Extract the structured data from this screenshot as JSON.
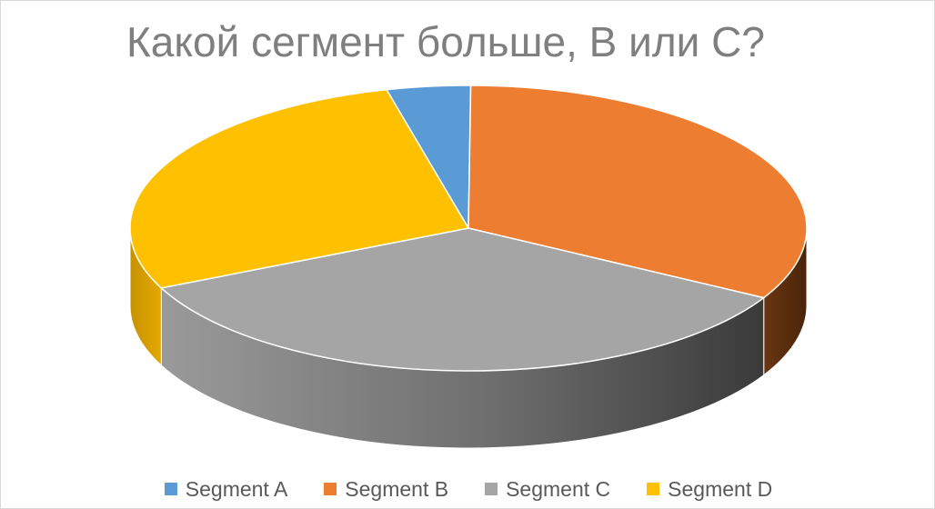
{
  "title": "Какой сегмент больше, В или С?",
  "chart_data": {
    "type": "pie",
    "three_d": true,
    "title": "Какой сегмент больше, В или С?",
    "legend_position": "bottom",
    "categories": [
      "Segment A",
      "Segment B",
      "Segment C",
      "Segment D"
    ],
    "values": [
      4,
      33,
      35,
      28
    ],
    "colors": [
      "#5b9bd5",
      "#ed7d31",
      "#a5a5a5",
      "#ffc000"
    ]
  },
  "legend": {
    "items": [
      {
        "label": "Segment A",
        "color": "#5b9bd5"
      },
      {
        "label": "Segment B",
        "color": "#ed7d31"
      },
      {
        "label": "Segment C",
        "color": "#a5a5a5"
      },
      {
        "label": "Segment D",
        "color": "#ffc000"
      }
    ]
  }
}
